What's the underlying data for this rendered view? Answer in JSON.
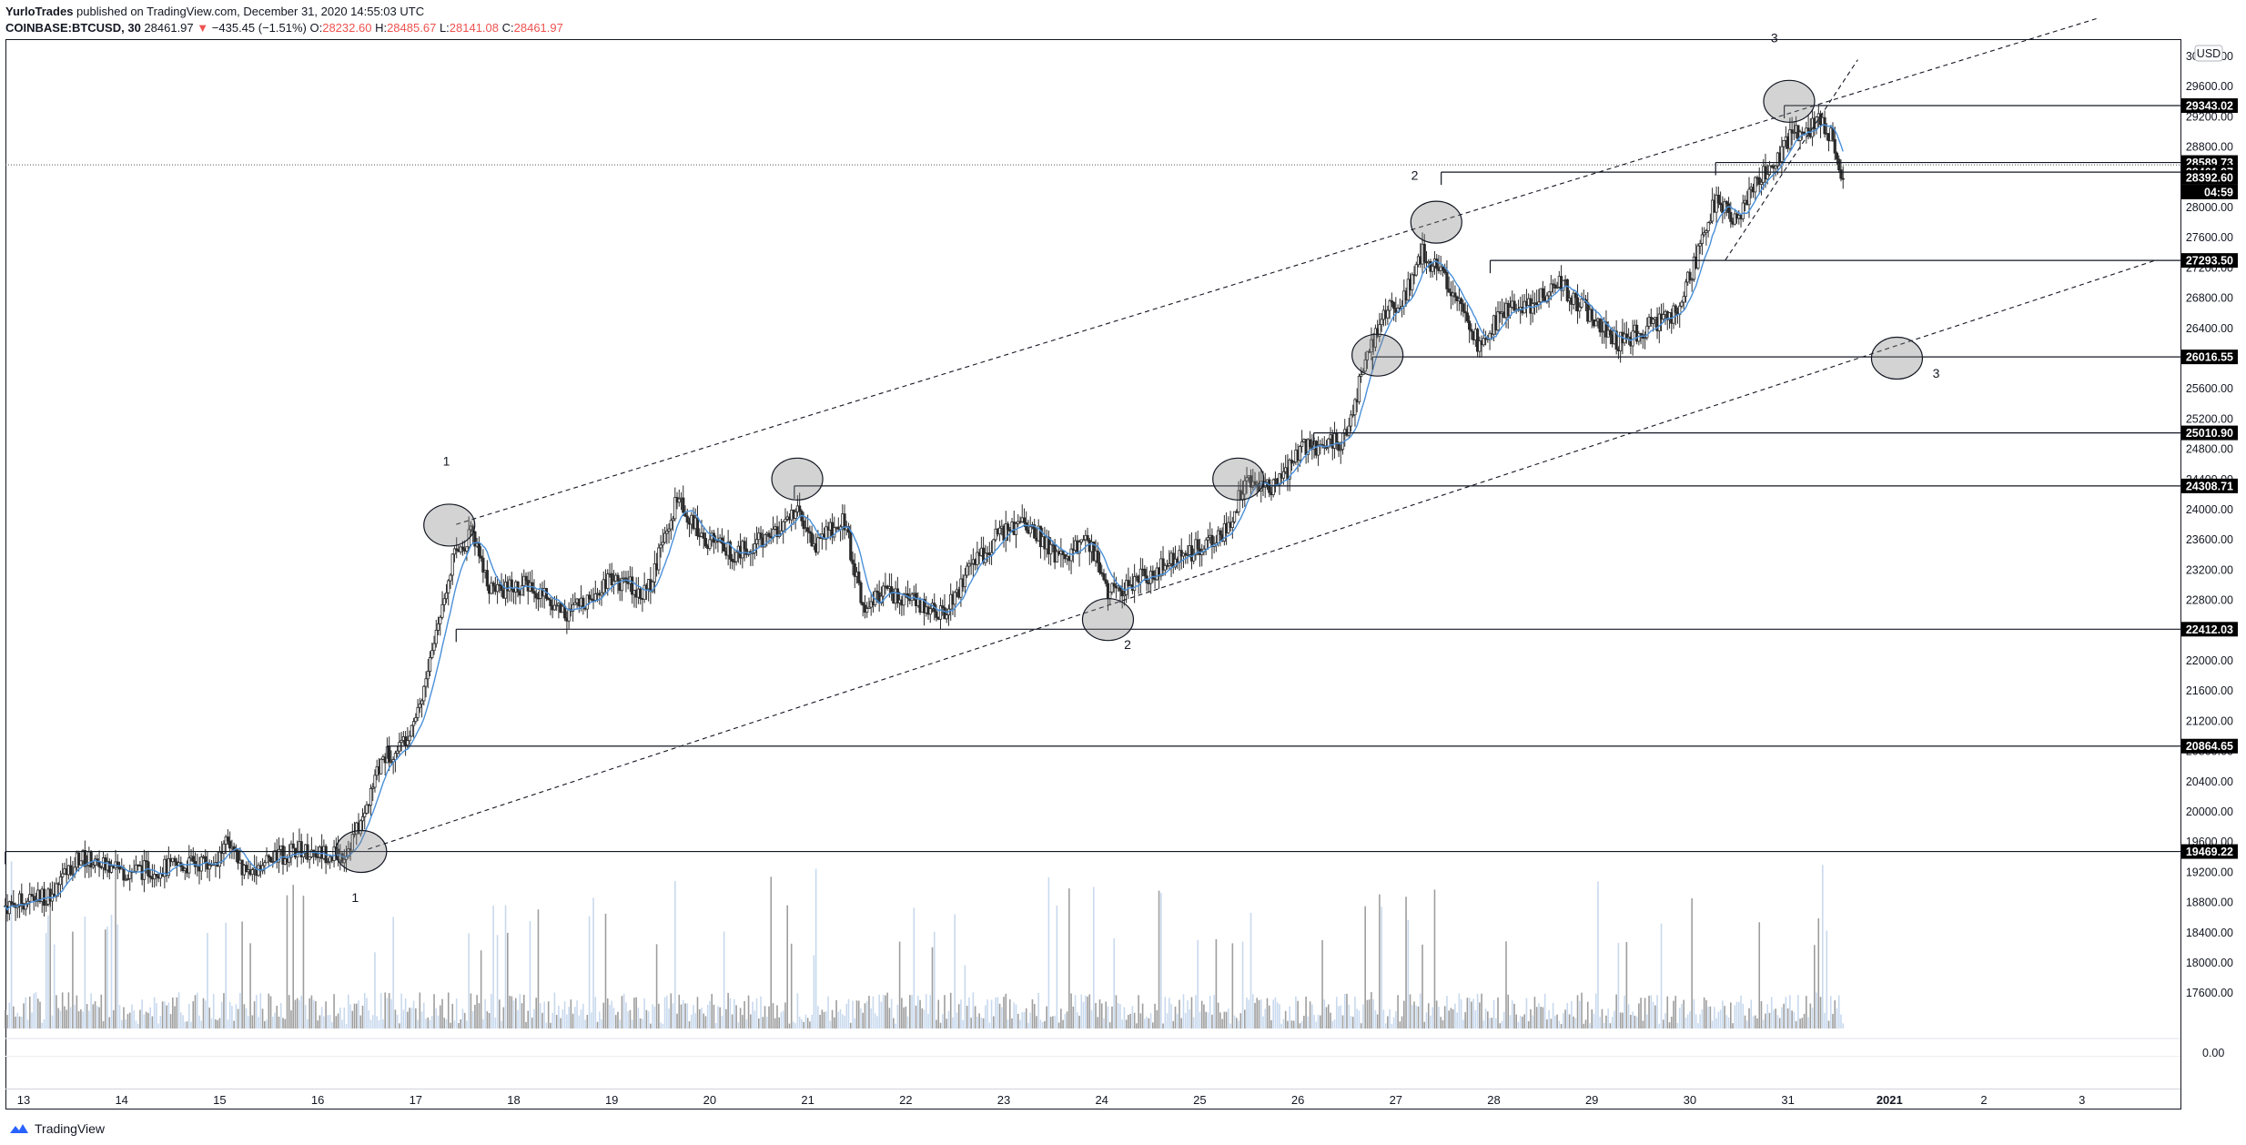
{
  "header": {
    "publisher": "YurloTrades",
    "published_text": "published on TradingView.com, December 31, 2020 14:55:03 UTC",
    "symbol": "COINBASE:BTCUSD, 30",
    "last": "28461.97",
    "change": "−435.45 (−1.51%)",
    "open_label": "O:",
    "open": "28232.60",
    "high_label": "H:",
    "high": "28485.67",
    "low_label": "L:",
    "low": "28141.08",
    "close_label": "C:",
    "close": "28461.97"
  },
  "currency_button": "USD",
  "countdown": "04:59",
  "footer": {
    "brand": "TradingView"
  },
  "colors": {
    "ma": "#4a90d9",
    "volume": "#c8d9ee",
    "volume_dark": "#888888",
    "label_bg": "#000000",
    "down": "#ef5350"
  },
  "chart_data": {
    "type": "candlestick",
    "symbol": "COINBASE:BTCUSD",
    "interval": "30",
    "y_range": [
      17600,
      30400
    ],
    "y_ticks": [
      17600,
      18000,
      18400,
      18800,
      19200,
      19600,
      20000,
      20400,
      20800,
      21200,
      21600,
      22000,
      22400,
      22800,
      23200,
      23600,
      24000,
      24400,
      24800,
      25200,
      25600,
      26000,
      26400,
      26800,
      27200,
      27600,
      28000,
      28400,
      28800,
      29200,
      29600,
      30000
    ],
    "volume_tick": "0.00",
    "x_labels": [
      "13",
      "14",
      "15",
      "16",
      "17",
      "18",
      "19",
      "20",
      "21",
      "22",
      "23",
      "24",
      "25",
      "26",
      "27",
      "28",
      "29",
      "30",
      "31",
      "2021",
      "2",
      "3"
    ],
    "x_label_day": [
      13,
      14,
      15,
      16,
      17,
      18,
      19,
      20,
      21,
      22,
      23,
      24,
      25,
      26,
      27,
      28,
      29,
      30,
      31,
      32,
      33,
      34
    ],
    "x_range_day": [
      12.85,
      35.0
    ],
    "price_path": [
      [
        12.85,
        18750
      ],
      [
        13.3,
        18900
      ],
      [
        13.6,
        19400
      ],
      [
        14.0,
        19200
      ],
      [
        14.5,
        19250
      ],
      [
        15.0,
        19350
      ],
      [
        15.1,
        19550
      ],
      [
        15.3,
        19200
      ],
      [
        15.8,
        19500
      ],
      [
        16.3,
        19420
      ],
      [
        16.5,
        19900
      ],
      [
        16.7,
        20700
      ],
      [
        16.9,
        20900
      ],
      [
        17.1,
        21500
      ],
      [
        17.25,
        22400
      ],
      [
        17.4,
        23300
      ],
      [
        17.6,
        23700
      ],
      [
        17.8,
        22900
      ],
      [
        18.2,
        23000
      ],
      [
        18.6,
        22600
      ],
      [
        19.0,
        23100
      ],
      [
        19.4,
        22900
      ],
      [
        19.7,
        24100
      ],
      [
        20.0,
        23600
      ],
      [
        20.3,
        23400
      ],
      [
        20.7,
        23700
      ],
      [
        20.9,
        24000
      ],
      [
        21.1,
        23500
      ],
      [
        21.4,
        23900
      ],
      [
        21.6,
        22700
      ],
      [
        21.8,
        22900
      ],
      [
        22.1,
        22800
      ],
      [
        22.4,
        22600
      ],
      [
        22.7,
        23200
      ],
      [
        23.0,
        23700
      ],
      [
        23.3,
        23800
      ],
      [
        23.6,
        23300
      ],
      [
        23.9,
        23600
      ],
      [
        24.1,
        22900
      ],
      [
        24.3,
        23000
      ],
      [
        24.6,
        23200
      ],
      [
        24.9,
        23400
      ],
      [
        25.3,
        23700
      ],
      [
        25.5,
        24400
      ],
      [
        25.8,
        24300
      ],
      [
        26.1,
        24800
      ],
      [
        26.5,
        24900
      ],
      [
        26.7,
        25800
      ],
      [
        26.9,
        26600
      ],
      [
        27.1,
        26700
      ],
      [
        27.3,
        27400
      ],
      [
        27.5,
        27100
      ],
      [
        27.7,
        26800
      ],
      [
        27.9,
        26100
      ],
      [
        28.1,
        26600
      ],
      [
        28.4,
        26700
      ],
      [
        28.7,
        27000
      ],
      [
        29.0,
        26600
      ],
      [
        29.3,
        26200
      ],
      [
        29.6,
        26400
      ],
      [
        29.9,
        26600
      ],
      [
        30.1,
        27300
      ],
      [
        30.3,
        28100
      ],
      [
        30.5,
        27800
      ],
      [
        30.7,
        28300
      ],
      [
        30.9,
        28600
      ],
      [
        31.1,
        29000
      ],
      [
        31.2,
        28900
      ],
      [
        31.35,
        29150
      ],
      [
        31.5,
        28900
      ],
      [
        31.6,
        28400
      ]
    ],
    "last_day": 31.6,
    "horizontal_levels": [
      {
        "price": 29343.02,
        "start_day": 31.0,
        "label": "29343.02"
      },
      {
        "price": 28589.73,
        "start_day": 30.3,
        "label": "28589.73"
      },
      {
        "price": 28461.97,
        "start_day": 27.5,
        "label": "28461.97"
      },
      {
        "price": 28392.6,
        "start_day": null,
        "label": "28392.60"
      },
      {
        "price": 27293.5,
        "start_day": 28.0,
        "label": "27293.50"
      },
      {
        "price": 26016.55,
        "start_day": 26.8,
        "label": "26016.55"
      },
      {
        "price": 25010.9,
        "start_day": 26.2,
        "label": "25010.90"
      },
      {
        "price": 24308.71,
        "start_day": 20.9,
        "label": "24308.71"
      },
      {
        "price": 22412.03,
        "start_day": 17.45,
        "label": "22412.03"
      },
      {
        "price": 20864.65,
        "start_day": 16.75,
        "label": "20864.65"
      },
      {
        "price": 19469.22,
        "start_day": 12.85,
        "label": "19469.22"
      }
    ],
    "trend_lines": [
      {
        "p1": [
          17.45,
          23800
        ],
        "p2": [
          34.2,
          30500
        ],
        "style": "dashed"
      },
      {
        "p1": [
          16.55,
          19500
        ],
        "p2": [
          34.8,
          27300
        ],
        "style": "dashed"
      },
      {
        "p1": [
          30.4,
          27300
        ],
        "p2": [
          31.75,
          29950
        ],
        "style": "dashed"
      }
    ],
    "circles": [
      {
        "day": 17.38,
        "price": 23790
      },
      {
        "day": 16.48,
        "price": 19470
      },
      {
        "day": 20.93,
        "price": 24400
      },
      {
        "day": 24.1,
        "price": 22540
      },
      {
        "day": 25.43,
        "price": 24400
      },
      {
        "day": 26.85,
        "price": 26040
      },
      {
        "day": 27.45,
        "price": 27800
      },
      {
        "day": 31.05,
        "price": 29400
      },
      {
        "day": 32.15,
        "price": 26000
      }
    ],
    "wave_labels": [
      {
        "text": "1",
        "day": 17.35,
        "price": 24580
      },
      {
        "text": "1",
        "day": 16.42,
        "price": 18800
      },
      {
        "text": "2",
        "day": 24.3,
        "price": 22150
      },
      {
        "text": "2",
        "day": 27.23,
        "price": 28360
      },
      {
        "text": "3",
        "day": 30.9,
        "price": 30180
      },
      {
        "text": "3",
        "day": 32.55,
        "price": 25740
      }
    ]
  }
}
